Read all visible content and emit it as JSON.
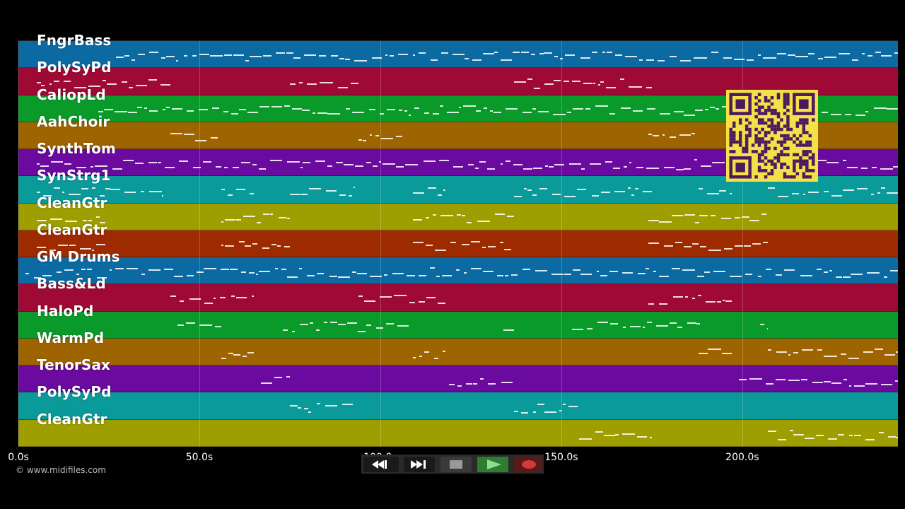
{
  "tracks": [
    {
      "name": "FngrBass",
      "color": "#0a6aa1"
    },
    {
      "name": "PolySyPd",
      "color": "#9e0a34"
    },
    {
      "name": "CaliopLd",
      "color": "#0a9a2a"
    },
    {
      "name": "AahChoir",
      "color": "#9e6400"
    },
    {
      "name": "SynthTom",
      "color": "#6a0a9e"
    },
    {
      "name": "SynStrg1",
      "color": "#0a9a9a"
    },
    {
      "name": "CleanGtr",
      "color": "#9e9e00"
    },
    {
      "name": "CleanGtr",
      "color": "#9e2a00"
    },
    {
      "name": "GM Drums",
      "color": "#0a6aa1"
    },
    {
      "name": "Bass&Ld",
      "color": "#9e0a34"
    },
    {
      "name": "HaloPd",
      "color": "#0a9a2a"
    },
    {
      "name": "WarmPd",
      "color": "#9e6400"
    },
    {
      "name": "TenorSax",
      "color": "#6a0a9e"
    },
    {
      "name": "PolySyPd",
      "color": "#0a9a9a"
    },
    {
      "name": "CleanGtr",
      "color": "#9e9e00"
    }
  ],
  "timeline": {
    "ticks": [
      "0.0s",
      "50.0s",
      "100.0s",
      "150.0s",
      "200.0s"
    ],
    "tick_values": [
      0,
      50,
      100,
      150,
      200
    ],
    "max_seconds": 243
  },
  "copyright": "© www.midifiles.com",
  "transport": {
    "rewind": "rewind-icon",
    "fast_forward": "fast-forward-icon",
    "stop": "stop-icon",
    "play": "play-icon",
    "record": "record-icon",
    "play_color": "#2e7d32",
    "record_color": "#c62828"
  },
  "qr_code": "qr-code"
}
